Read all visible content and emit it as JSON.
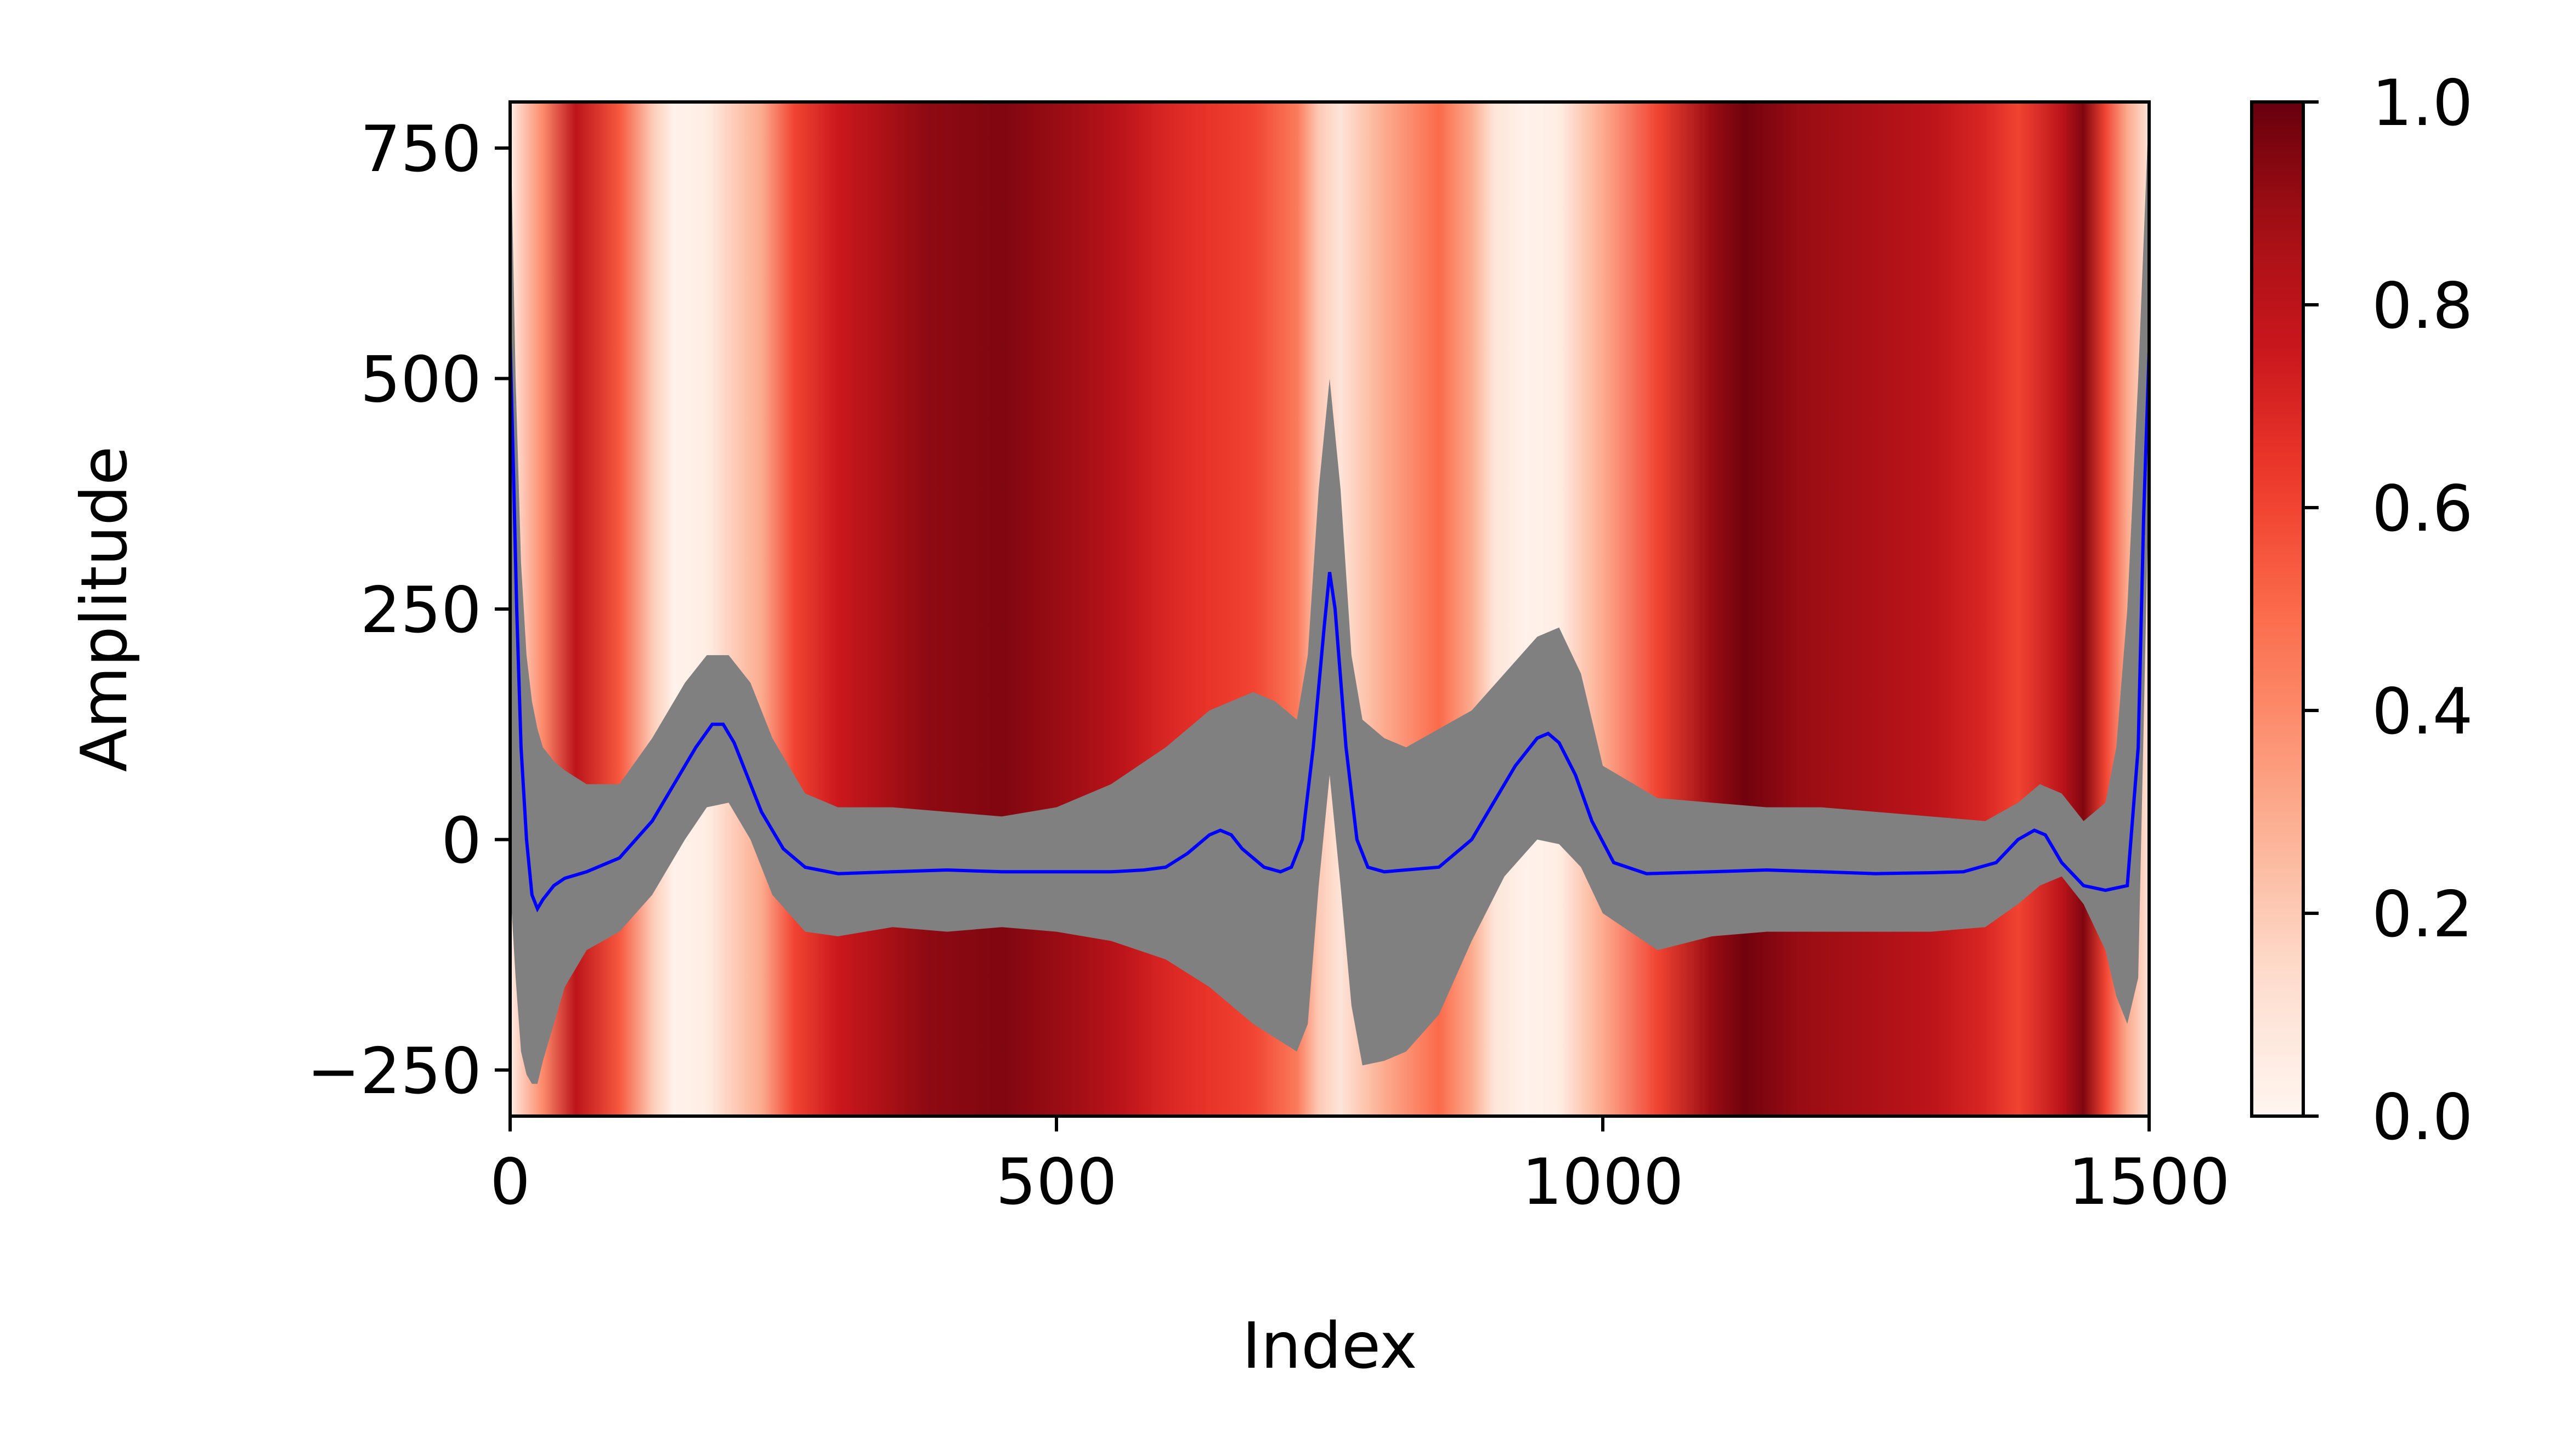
{
  "chart_data": {
    "type": "line",
    "title": "",
    "xlabel": "Index",
    "ylabel": "Amplitude",
    "xlim": [
      0,
      1500
    ],
    "ylim": [
      -300,
      800
    ],
    "x_ticks": [
      0,
      500,
      1000,
      1500
    ],
    "x_tick_labels": [
      "0",
      "500",
      "1000",
      "1500"
    ],
    "y_ticks": [
      -250,
      0,
      250,
      500,
      750
    ],
    "y_tick_labels": [
      "−250",
      "0",
      "250",
      "500",
      "750"
    ],
    "grid": false,
    "legend": "none",
    "background_heatmap": {
      "colormap": "Reds",
      "x": [
        0,
        30,
        60,
        100,
        130,
        150,
        180,
        230,
        260,
        300,
        340,
        380,
        450,
        520,
        560,
        600,
        640,
        680,
        720,
        740,
        760,
        800,
        850,
        880,
        900,
        930,
        960,
        1000,
        1050,
        1100,
        1130,
        1180,
        1250,
        1300,
        1350,
        1380,
        1420,
        1440,
        1460,
        1480,
        1500
      ],
      "values": [
        0.05,
        0.4,
        0.8,
        0.55,
        0.2,
        0.02,
        0.05,
        0.3,
        0.6,
        0.75,
        0.85,
        0.92,
        0.95,
        0.88,
        0.8,
        0.7,
        0.65,
        0.6,
        0.45,
        0.2,
        0.1,
        0.3,
        0.5,
        0.3,
        0.1,
        0.02,
        0.05,
        0.3,
        0.6,
        0.9,
        0.98,
        0.9,
        0.85,
        0.8,
        0.7,
        0.6,
        0.8,
        0.95,
        0.6,
        0.3,
        0.1
      ]
    },
    "colorbar": {
      "range": [
        0.0,
        1.0
      ],
      "ticks": [
        0.0,
        0.2,
        0.4,
        0.6,
        0.8,
        1.0
      ],
      "tick_labels": [
        "0.0",
        "0.2",
        "0.4",
        "0.6",
        "0.8",
        "1.0"
      ]
    },
    "series": [
      {
        "kind": "band",
        "color": "#808080",
        "x": [
          0,
          5,
          10,
          15,
          20,
          25,
          30,
          40,
          50,
          70,
          100,
          130,
          160,
          180,
          200,
          220,
          240,
          270,
          300,
          350,
          400,
          450,
          500,
          550,
          600,
          640,
          680,
          700,
          720,
          730,
          740,
          750,
          760,
          770,
          780,
          800,
          820,
          850,
          880,
          910,
          940,
          960,
          980,
          1000,
          1050,
          1100,
          1150,
          1200,
          1250,
          1300,
          1350,
          1380,
          1400,
          1420,
          1440,
          1460,
          1470,
          1480,
          1490,
          1500
        ],
        "upper": [
          800,
          500,
          300,
          200,
          150,
          120,
          100,
          85,
          75,
          60,
          60,
          110,
          170,
          200,
          200,
          170,
          110,
          50,
          35,
          35,
          30,
          25,
          35,
          60,
          100,
          140,
          160,
          150,
          130,
          200,
          380,
          500,
          380,
          200,
          130,
          110,
          100,
          120,
          140,
          180,
          220,
          230,
          180,
          80,
          45,
          40,
          35,
          35,
          30,
          25,
          20,
          40,
          60,
          50,
          20,
          40,
          100,
          250,
          500,
          800
        ],
        "lower": [
          -50,
          -150,
          -230,
          -255,
          -265,
          -265,
          -240,
          -200,
          -160,
          -120,
          -100,
          -60,
          0,
          35,
          40,
          0,
          -60,
          -100,
          -105,
          -95,
          -100,
          -95,
          -100,
          -110,
          -130,
          -160,
          -200,
          -215,
          -230,
          -200,
          -50,
          70,
          -50,
          -180,
          -245,
          -240,
          -230,
          -190,
          -110,
          -40,
          0,
          -5,
          -30,
          -80,
          -120,
          -105,
          -100,
          -100,
          -100,
          -100,
          -95,
          -70,
          -50,
          -40,
          -70,
          -120,
          -170,
          -200,
          -150,
          400
        ]
      },
      {
        "kind": "line",
        "color": "#0000ff",
        "x": [
          0,
          3,
          6,
          10,
          15,
          20,
          25,
          30,
          40,
          50,
          70,
          100,
          130,
          150,
          170,
          185,
          195,
          205,
          215,
          230,
          250,
          270,
          300,
          350,
          400,
          450,
          500,
          550,
          580,
          600,
          620,
          640,
          650,
          660,
          670,
          690,
          705,
          715,
          725,
          735,
          745,
          750,
          755,
          765,
          775,
          785,
          800,
          850,
          880,
          900,
          920,
          940,
          950,
          960,
          975,
          990,
          1010,
          1040,
          1100,
          1150,
          1200,
          1250,
          1300,
          1330,
          1360,
          1380,
          1395,
          1405,
          1420,
          1440,
          1460,
          1480,
          1490,
          1495,
          1500
        ],
        "y": [
          540,
          400,
          250,
          100,
          0,
          -60,
          -75,
          -65,
          -50,
          -42,
          -35,
          -20,
          20,
          60,
          100,
          125,
          125,
          105,
          75,
          30,
          -10,
          -30,
          -37,
          -35,
          -33,
          -35,
          -35,
          -35,
          -33,
          -30,
          -15,
          5,
          10,
          5,
          -10,
          -30,
          -35,
          -30,
          0,
          100,
          230,
          290,
          250,
          100,
          0,
          -30,
          -35,
          -30,
          0,
          40,
          80,
          110,
          115,
          105,
          70,
          20,
          -25,
          -37,
          -35,
          -33,
          -35,
          -37,
          -36,
          -35,
          -25,
          0,
          10,
          5,
          -25,
          -50,
          -55,
          -50,
          100,
          350,
          530
        ]
      }
    ]
  }
}
